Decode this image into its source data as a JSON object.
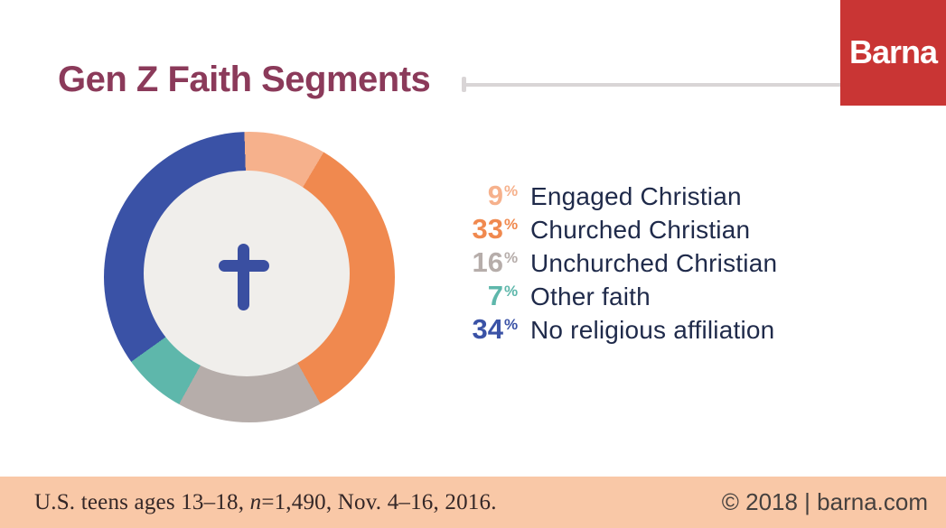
{
  "page": {
    "background": "#ffffff"
  },
  "header": {
    "title": "Gen Z Faith Segments",
    "title_color": "#8b3a5a",
    "rule_color": "#d9d5d6",
    "logo": {
      "text": "Barna",
      "background": "#c93534",
      "text_color": "#ffffff"
    }
  },
  "chart_data": {
    "type": "pie",
    "subtype": "donut",
    "title": "Gen Z Faith Segments",
    "unit": "%",
    "start_angle_deg": -2,
    "direction": "clockwise",
    "center_icon": "christian-cross",
    "hole_color": "#f0eeeb",
    "cross_color": "#3a4fa1",
    "legend_position": "right",
    "segments": [
      {
        "label": "Engaged Christian",
        "value": 9,
        "color": "#f6b18c"
      },
      {
        "label": "Churched Christian",
        "value": 33,
        "color": "#f0894f"
      },
      {
        "label": "Unchurched Christian",
        "value": 16,
        "color": "#b6adaa"
      },
      {
        "label": "Other faith",
        "value": 7,
        "color": "#5eb7ab"
      },
      {
        "label": "No religious affiliation",
        "value": 34,
        "color": "#3a52a6"
      }
    ]
  },
  "legend": {
    "percent_symbol": "%",
    "label_color": "#1f2a4a"
  },
  "footer": {
    "background": "#f9c8a7",
    "source_prefix": "U.S. teens ages 13–18, ",
    "source_n": "n",
    "source_suffix": "=1,490, Nov. 4–16, 2016.",
    "source_color": "#342727",
    "copyright": "© 2018 | barna.com",
    "copyright_color": "#45403e"
  }
}
